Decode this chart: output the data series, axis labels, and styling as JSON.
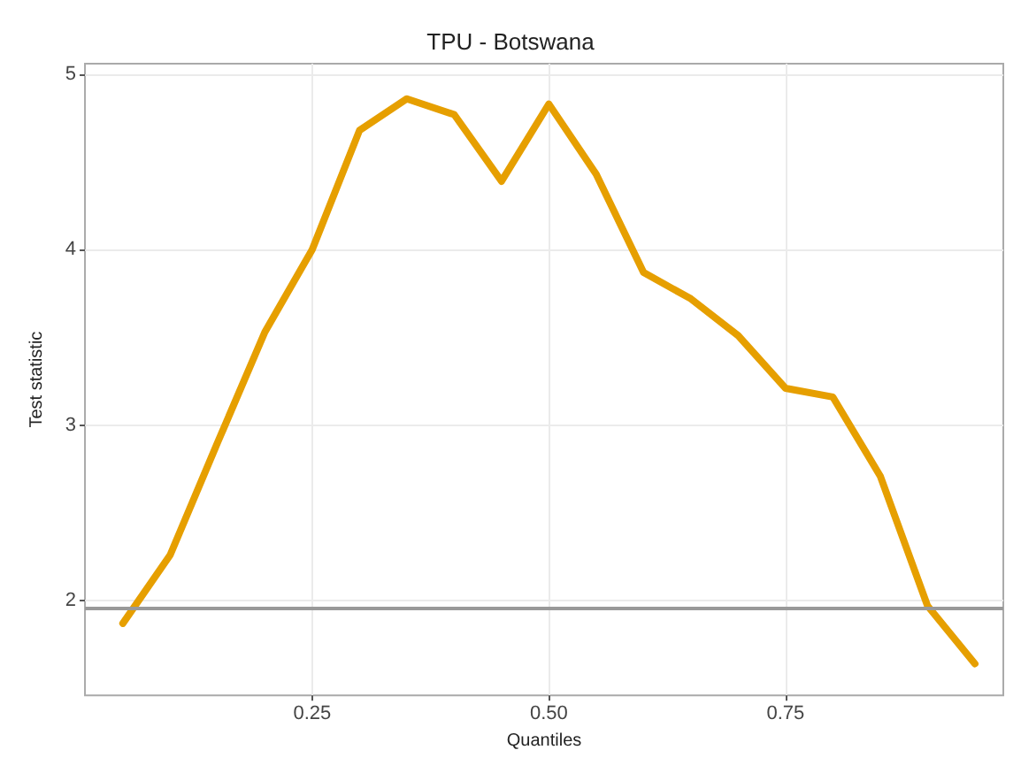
{
  "chart_data": {
    "type": "line",
    "title": "TPU - Botswana",
    "xlabel": "Quantiles",
    "ylabel": "Test statistic",
    "x": [
      0.05,
      0.1,
      0.15,
      0.2,
      0.25,
      0.3,
      0.35,
      0.4,
      0.45,
      0.5,
      0.55,
      0.6,
      0.65,
      0.7,
      0.75,
      0.8,
      0.85,
      0.9,
      0.95
    ],
    "series": [
      {
        "color": "#e69f00",
        "values": [
          1.87,
          2.26,
          2.9,
          3.53,
          4.0,
          4.68,
          4.86,
          4.77,
          4.39,
          4.83,
          4.43,
          3.87,
          3.72,
          3.51,
          3.21,
          3.16,
          2.71,
          1.97,
          1.64
        ]
      }
    ],
    "xlim": [
      0.01,
      0.98
    ],
    "ylim": [
      1.46,
      5.06
    ],
    "xticks": [
      0.25,
      {
        "value": 0.5,
        "label": "0.50"
      },
      0.75
    ],
    "yticks": [
      2,
      3,
      4,
      5
    ],
    "ref_lines": [
      {
        "axis": "y",
        "value": 1.96,
        "color": "#999999"
      }
    ],
    "grid": true,
    "marker": "none",
    "line_style": "solid"
  }
}
